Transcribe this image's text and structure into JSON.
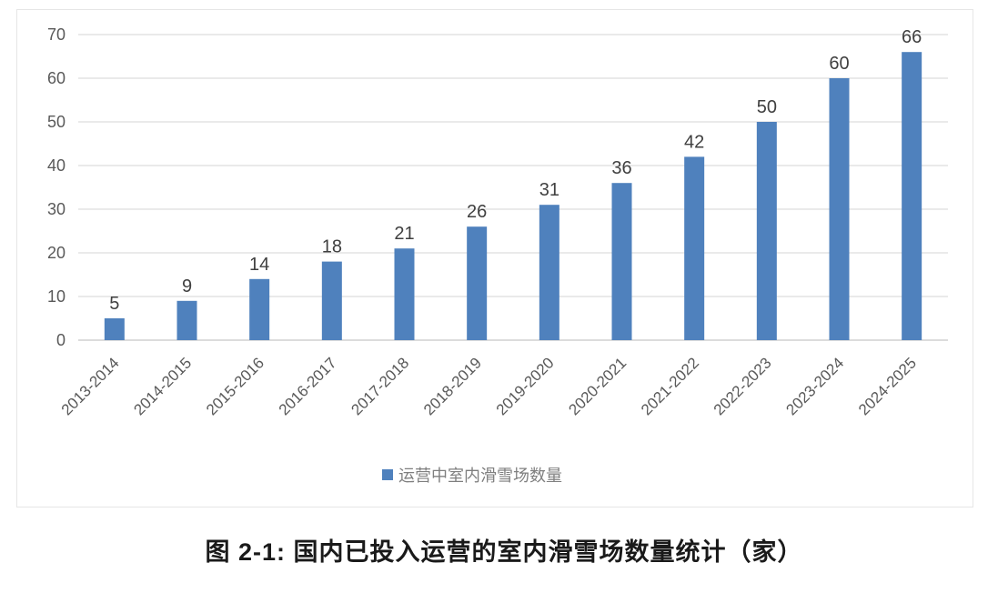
{
  "chart_data": {
    "type": "bar",
    "title": "",
    "caption": "图 2-1: 国内已投入运营的室内滑雪场数量统计（家）",
    "xlabel": "",
    "ylabel": "",
    "ylim": [
      0,
      70
    ],
    "yticks": [
      0,
      10,
      20,
      30,
      40,
      50,
      60,
      70
    ],
    "grid": true,
    "legend_position": "bottom",
    "categories": [
      "2013-2014",
      "2014-2015",
      "2015-2016",
      "2016-2017",
      "2017-2018",
      "2018-2019",
      "2019-2020",
      "2020-2021",
      "2021-2022",
      "2022-2023",
      "2023-2024",
      "2024-2025"
    ],
    "series": [
      {
        "name": "运营中室内滑雪场数量",
        "color": "#4f81bd",
        "values": [
          5,
          9,
          14,
          18,
          21,
          26,
          31,
          36,
          42,
          50,
          60,
          66
        ]
      }
    ],
    "data_labels": true
  },
  "colors": {
    "bar": "#4f81bd",
    "grid": "#e3e3e3",
    "axis_text": "#595959",
    "label_text": "#404040",
    "legend_text": "#7f7f7f",
    "frame": "#e6e6e6"
  }
}
